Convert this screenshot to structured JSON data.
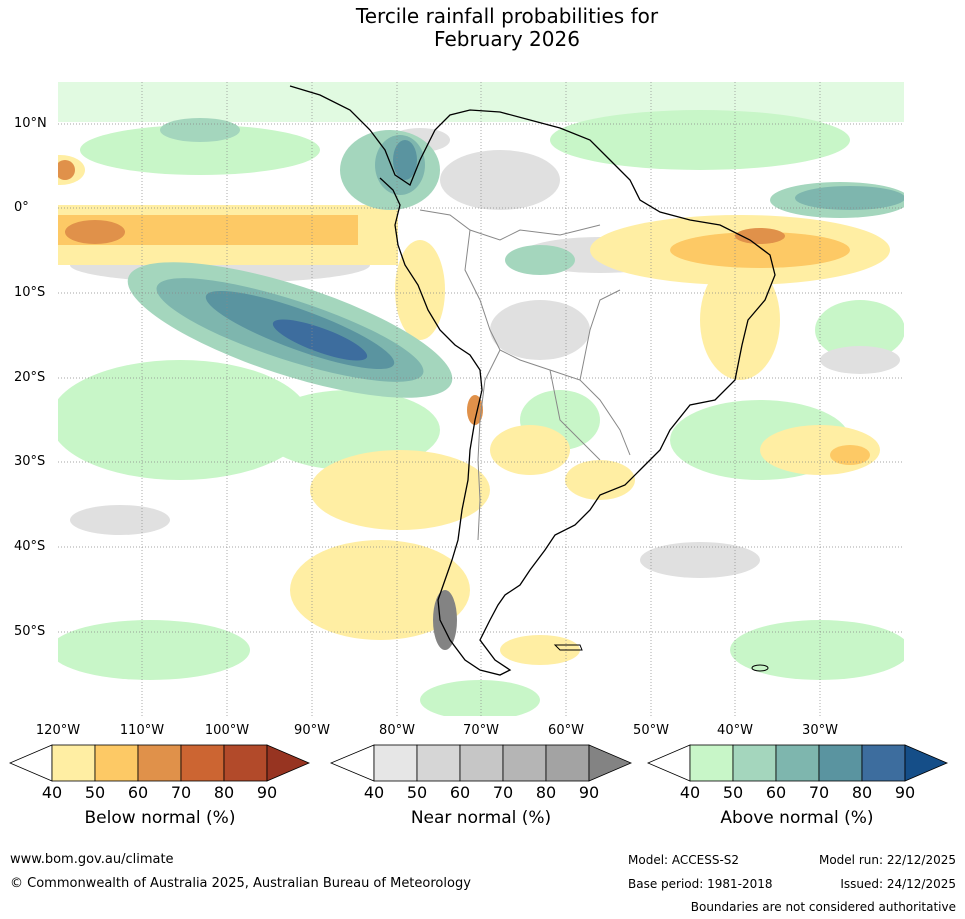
{
  "title": {
    "line1": "Tercile rainfall probabilities for",
    "line2": "February 2026"
  },
  "map": {
    "region": "South America",
    "lat_labels": [
      "10°N",
      "0°",
      "10°S",
      "20°S",
      "30°S",
      "40°S",
      "50°S"
    ],
    "lon_labels": [
      "120°W",
      "110°W",
      "100°W",
      "90°W",
      "80°W",
      "70°W",
      "60°W",
      "50°W",
      "40°W",
      "30°W"
    ]
  },
  "colorbars": {
    "below": {
      "caption": "Below normal (%)",
      "ticks": [
        "40",
        "50",
        "60",
        "70",
        "80",
        "90"
      ],
      "colors": [
        "#ffeea3",
        "#fdc965",
        "#e0914a",
        "#cc6532",
        "#b24a2a",
        "#973421"
      ]
    },
    "near": {
      "caption": "Near normal (%)",
      "ticks": [
        "40",
        "50",
        "60",
        "70",
        "80",
        "90"
      ],
      "colors": [
        "#e6e6e6",
        "#d6d6d6",
        "#c6c6c6",
        "#b5b5b5",
        "#a3a3a3",
        "#838383"
      ]
    },
    "above": {
      "caption": "Above normal (%)",
      "ticks": [
        "40",
        "50",
        "60",
        "70",
        "80",
        "90"
      ],
      "colors": [
        "#c8f6c8",
        "#a4d6bd",
        "#7eb6ae",
        "#5a94a0",
        "#3d6d9e",
        "#154e88"
      ]
    }
  },
  "footer": {
    "website": "www.bom.gov.au/climate",
    "copyright": "© Commonwealth of Australia 2025, Australian Bureau of Meteorology",
    "model": "Model: ACCESS-S2",
    "model_run": "Model run: 22/12/2025",
    "base_period": "Base period: 1981-2018",
    "issued": "Issued: 24/12/2025",
    "disclaimer": "Boundaries are not considered authoritative"
  }
}
